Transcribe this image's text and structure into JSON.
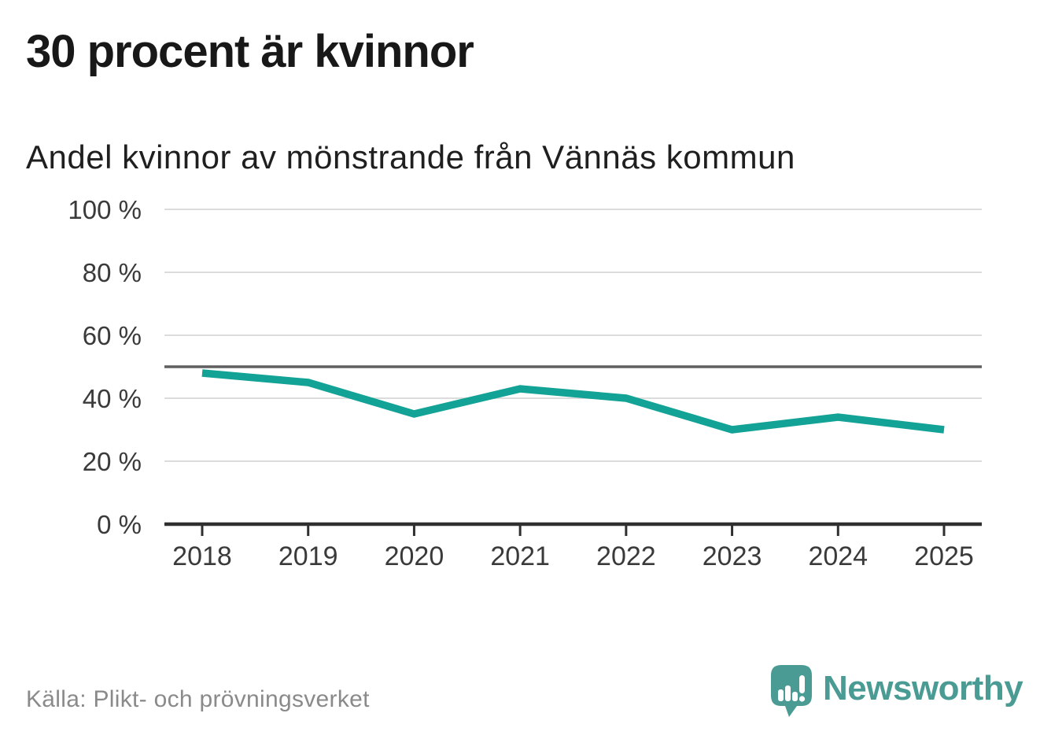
{
  "header": {
    "title": "30 procent är kvinnor",
    "subtitle": "Andel kvinnor av mönstrande från Vännäs kommun"
  },
  "footer": {
    "source": "Källa: Plikt- och prövningsverket",
    "brand": "Newsworthy"
  },
  "colors": {
    "line": "#12A296",
    "brand": "#4A9B94",
    "grid": "#DCDCDC",
    "reference_line": "#5F5F5F",
    "axis": "#2F2F2F",
    "tick_label": "#3A3A3A",
    "title": "#181818",
    "source_text": "#8A8A8A"
  },
  "chart_data": {
    "type": "line",
    "title": "30 procent är kvinnor",
    "subtitle": "Andel kvinnor av mönstrande från Vännäs kommun",
    "x": [
      "2018",
      "2019",
      "2020",
      "2021",
      "2022",
      "2023",
      "2024",
      "2025"
    ],
    "series": [
      {
        "name": "Andel kvinnor av mönstrande",
        "values": [
          48,
          45,
          35,
          43,
          40,
          30,
          34,
          30
        ]
      }
    ],
    "unit": "%",
    "xlabel": "",
    "ylabel": "",
    "ylim": [
      0,
      100
    ],
    "y_ticks": [
      0,
      20,
      40,
      60,
      80,
      100
    ],
    "y_tick_labels": [
      "0 %",
      "20 %",
      "40 %",
      "60 %",
      "80 %",
      "100 %"
    ],
    "reference_line": 50,
    "grid": "horizontal",
    "legend_position": "none"
  }
}
